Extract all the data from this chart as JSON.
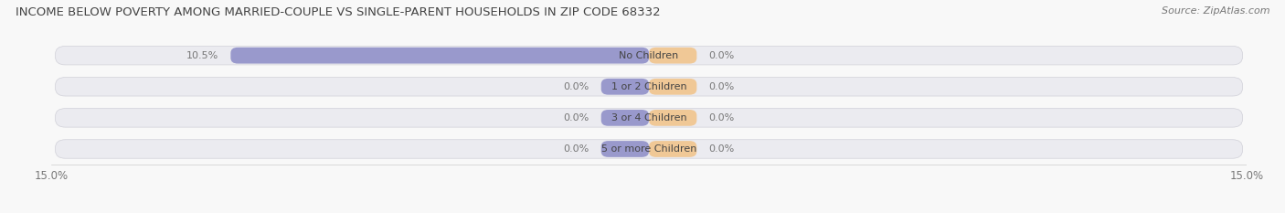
{
  "title": "INCOME BELOW POVERTY AMONG MARRIED-COUPLE VS SINGLE-PARENT HOUSEHOLDS IN ZIP CODE 68332",
  "source": "Source: ZipAtlas.com",
  "categories": [
    "No Children",
    "1 or 2 Children",
    "3 or 4 Children",
    "5 or more Children"
  ],
  "married_values": [
    10.5,
    0.0,
    0.0,
    0.0
  ],
  "single_values": [
    0.0,
    0.0,
    0.0,
    0.0
  ],
  "x_max": 15.0,
  "married_color": "#9999cc",
  "single_color": "#f0c896",
  "row_bg_color": "#ebebf0",
  "fig_bg_color": "#f8f8f8",
  "title_fontsize": 9.5,
  "label_fontsize": 8,
  "tick_fontsize": 8.5,
  "source_fontsize": 8,
  "title_color": "#444444",
  "label_color": "#444444",
  "tick_color": "#777777",
  "min_bar_width": 1.2
}
